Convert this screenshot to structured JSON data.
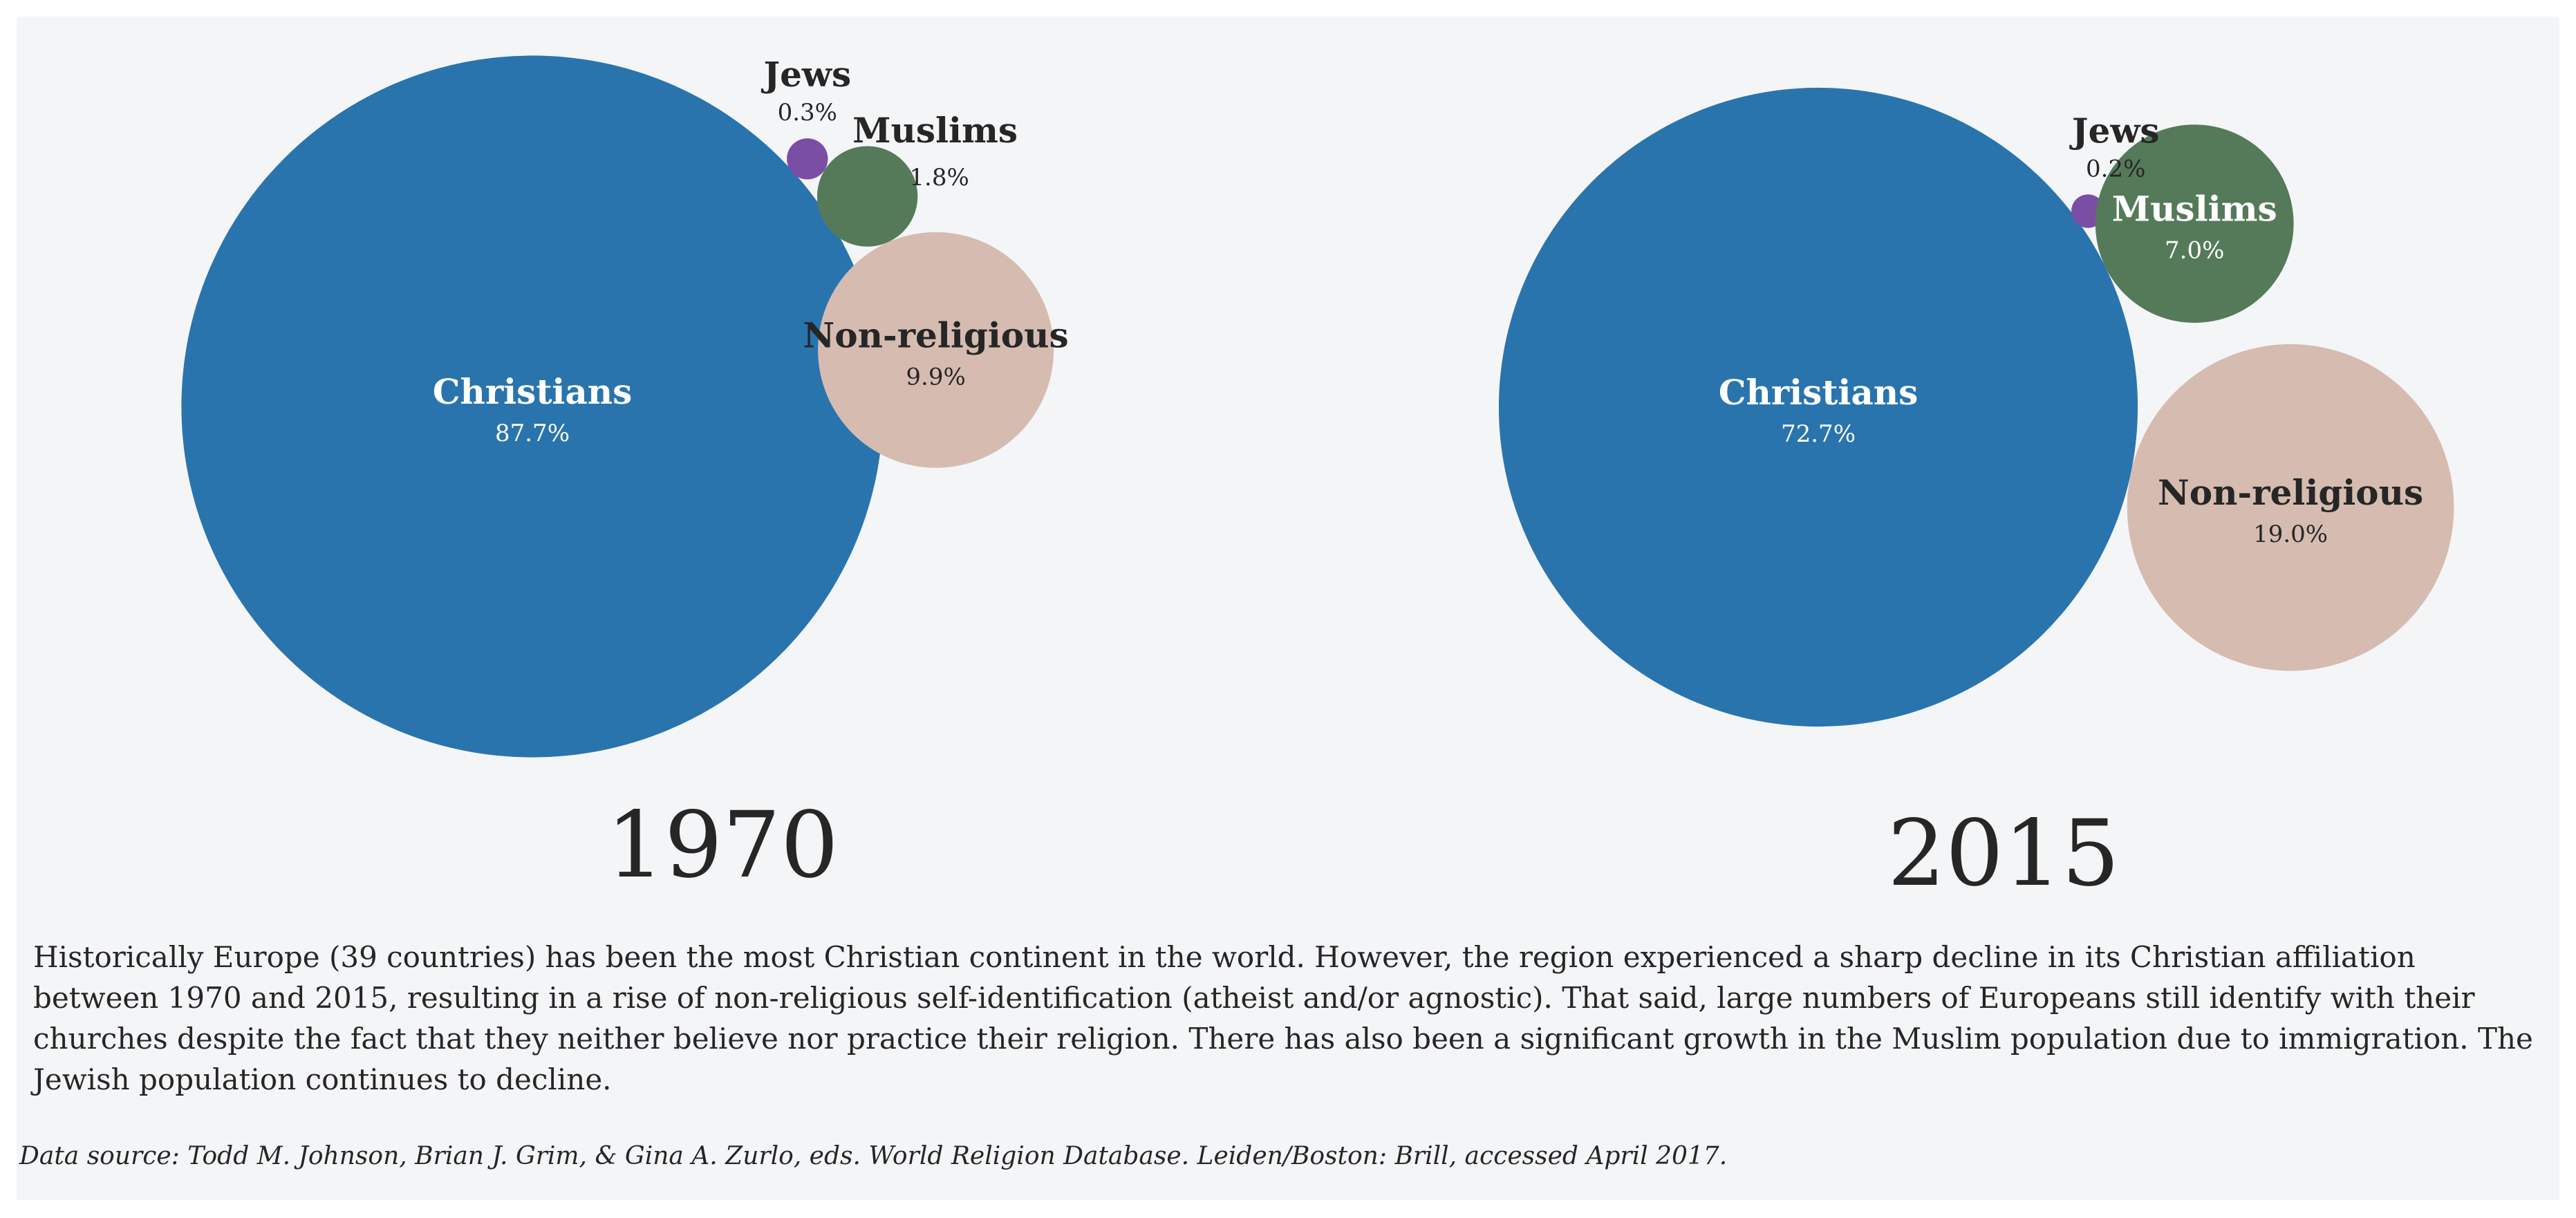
{
  "chart_data": [
    {
      "type": "bubble",
      "year": "1970",
      "series": [
        {
          "name": "Christians",
          "value": 87.7,
          "label": "87.7%",
          "color": "#2a74ad"
        },
        {
          "name": "Jews",
          "value": 0.3,
          "label": "0.3%",
          "color": "#7b4ea6"
        },
        {
          "name": "Muslims",
          "value": 1.8,
          "label": "1.8%",
          "color": "#557a59"
        },
        {
          "name": "Non-religious",
          "value": 9.9,
          "label": "9.9%",
          "color": "#d6bbb0"
        }
      ]
    },
    {
      "type": "bubble",
      "year": "2015",
      "series": [
        {
          "name": "Christians",
          "value": 72.7,
          "label": "72.7%",
          "color": "#2a74ad"
        },
        {
          "name": "Jews",
          "value": 0.2,
          "label": "0.2%",
          "color": "#7b4ea6"
        },
        {
          "name": "Muslims",
          "value": 7.0,
          "label": "7.0%",
          "color": "#557a59"
        },
        {
          "name": "Non-religious",
          "value": 19.0,
          "label": "19.0%",
          "color": "#d6bbb0"
        }
      ]
    }
  ],
  "description": "Historically Europe (39 countries) has been the most Christian continent in the world. However, the region experienced a sharp decline in its Christian affiliation between 1970 and 2015, resulting in a rise of non-religious self-identification (atheist and/or agnostic). That said, large numbers of Europeans still identify with their churches despite the fact that they neither believe nor practice their religion. There has also been a significant growth in the Muslim population due to immigration. The Jewish population continues to decline.",
  "source": "Data source: Todd M. Johnson, Brian J. Grim, & Gina A. Zurlo, eds. World Religion Database. Leiden/Boston: Brill, accessed April 2017."
}
